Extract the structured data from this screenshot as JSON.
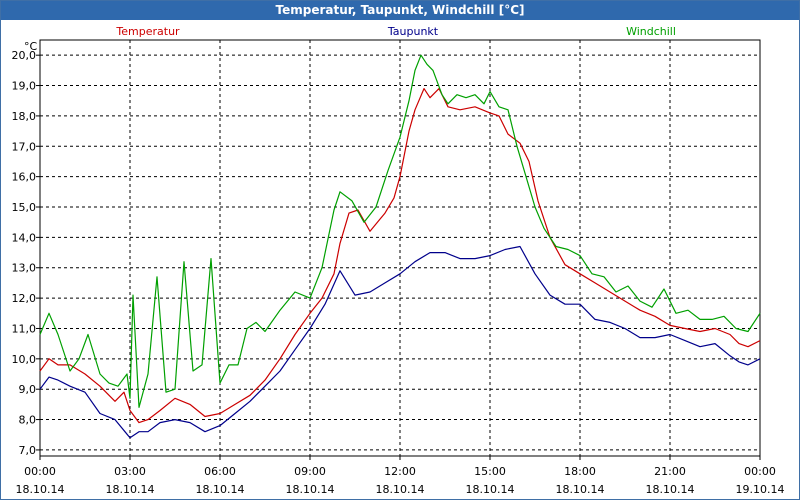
{
  "window": {
    "title": "Temperatur, Taupunkt, Windchill [°C]"
  },
  "chart_data": {
    "type": "line",
    "title": "Temperatur, Taupunkt, Windchill [°C]",
    "ylabel": "°C",
    "xlabel": "",
    "ylim": [
      6.8,
      20.5
    ],
    "xlim": [
      0,
      24
    ],
    "grid": true,
    "legend_position": "top",
    "y_ticks": [
      "7,0",
      "8,0",
      "9,0",
      "10,0",
      "11,0",
      "12,0",
      "13,0",
      "14,0",
      "15,0",
      "16,0",
      "17,0",
      "18,0",
      "19,0",
      "20,0"
    ],
    "x_ticks": [
      {
        "time": "00:00",
        "date": "18.10.14"
      },
      {
        "time": "03:00",
        "date": "18.10.14"
      },
      {
        "time": "06:00",
        "date": "18.10.14"
      },
      {
        "time": "09:00",
        "date": "18.10.14"
      },
      {
        "time": "12:00",
        "date": "18.10.14"
      },
      {
        "time": "15:00",
        "date": "18.10.14"
      },
      {
        "time": "18:00",
        "date": "18.10.14"
      },
      {
        "time": "21:00",
        "date": "18.10.14"
      },
      {
        "time": "00:00",
        "date": "19.10.14"
      }
    ],
    "series": [
      {
        "name": "Temperatur",
        "color": "#cc0000",
        "x": [
          0,
          0.3,
          0.6,
          1.0,
          1.5,
          2.0,
          2.5,
          2.8,
          3.0,
          3.3,
          3.6,
          4.0,
          4.5,
          5.0,
          5.5,
          6.0,
          6.5,
          7.0,
          7.5,
          8.0,
          8.5,
          9.0,
          9.4,
          9.8,
          10.0,
          10.3,
          10.6,
          11.0,
          11.5,
          11.8,
          12.0,
          12.3,
          12.5,
          12.8,
          13.0,
          13.3,
          13.6,
          14.0,
          14.5,
          15.0,
          15.3,
          15.6,
          16.0,
          16.3,
          16.6,
          17.0,
          17.5,
          18.0,
          18.5,
          19.0,
          19.5,
          20.0,
          20.5,
          21.0,
          21.5,
          22.0,
          22.5,
          23.0,
          23.3,
          23.6,
          24.0
        ],
        "values": [
          9.6,
          10.0,
          9.8,
          9.8,
          9.5,
          9.1,
          8.6,
          8.9,
          8.3,
          7.9,
          8.0,
          8.3,
          8.7,
          8.5,
          8.1,
          8.2,
          8.5,
          8.8,
          9.3,
          10.0,
          10.8,
          11.5,
          12.0,
          12.8,
          13.8,
          14.8,
          14.9,
          14.2,
          14.8,
          15.3,
          16.0,
          17.5,
          18.2,
          18.9,
          18.6,
          18.9,
          18.3,
          18.2,
          18.3,
          18.1,
          18.0,
          17.4,
          17.1,
          16.5,
          15.2,
          14.0,
          13.1,
          12.8,
          12.5,
          12.2,
          11.9,
          11.6,
          11.4,
          11.1,
          11.0,
          10.9,
          11.0,
          10.8,
          10.5,
          10.4,
          10.6
        ]
      },
      {
        "name": "Taupunkt",
        "color": "#00008b",
        "x": [
          0,
          0.3,
          0.6,
          1.0,
          1.5,
          2.0,
          2.5,
          3.0,
          3.3,
          3.6,
          4.0,
          4.5,
          5.0,
          5.5,
          6.0,
          6.5,
          7.0,
          7.5,
          8.0,
          8.5,
          9.0,
          9.5,
          10.0,
          10.5,
          11.0,
          11.5,
          12.0,
          12.5,
          13.0,
          13.5,
          14.0,
          14.5,
          15.0,
          15.5,
          16.0,
          16.5,
          17.0,
          17.5,
          18.0,
          18.5,
          19.0,
          19.5,
          20.0,
          20.5,
          21.0,
          21.5,
          22.0,
          22.5,
          23.0,
          23.3,
          23.6,
          24.0
        ],
        "values": [
          9.0,
          9.4,
          9.3,
          9.1,
          8.9,
          8.2,
          8.0,
          7.4,
          7.6,
          7.6,
          7.9,
          8.0,
          7.9,
          7.6,
          7.8,
          8.2,
          8.6,
          9.1,
          9.6,
          10.3,
          11.0,
          11.8,
          12.9,
          12.1,
          12.2,
          12.5,
          12.8,
          13.2,
          13.5,
          13.5,
          13.3,
          13.3,
          13.4,
          13.6,
          13.7,
          12.8,
          12.1,
          11.8,
          11.8,
          11.3,
          11.2,
          11.0,
          10.7,
          10.7,
          10.8,
          10.6,
          10.4,
          10.5,
          10.1,
          9.9,
          9.8,
          10.0
        ]
      },
      {
        "name": "Windchill",
        "color": "#00a000",
        "x": [
          0,
          0.3,
          0.6,
          1.0,
          1.3,
          1.6,
          2.0,
          2.3,
          2.6,
          2.9,
          3.0,
          3.1,
          3.3,
          3.6,
          3.9,
          4.2,
          4.5,
          4.8,
          5.1,
          5.4,
          5.7,
          6.0,
          6.3,
          6.6,
          6.9,
          7.2,
          7.5,
          8.0,
          8.5,
          9.0,
          9.4,
          9.8,
          10.0,
          10.4,
          10.8,
          11.2,
          11.6,
          12.0,
          12.3,
          12.5,
          12.7,
          12.9,
          13.1,
          13.4,
          13.6,
          13.9,
          14.2,
          14.5,
          14.8,
          15.0,
          15.3,
          15.6,
          15.9,
          16.2,
          16.5,
          16.8,
          17.2,
          17.6,
          18.0,
          18.4,
          18.8,
          19.2,
          19.6,
          20.0,
          20.4,
          20.8,
          21.2,
          21.6,
          22.0,
          22.4,
          22.8,
          23.2,
          23.6,
          24.0
        ],
        "values": [
          10.8,
          11.5,
          10.8,
          9.6,
          10.0,
          10.8,
          9.5,
          9.2,
          9.1,
          9.5,
          8.7,
          12.1,
          8.4,
          9.5,
          12.7,
          8.9,
          9.0,
          13.2,
          9.6,
          9.8,
          13.3,
          9.2,
          9.8,
          9.8,
          11.0,
          11.2,
          10.9,
          11.6,
          12.2,
          12.0,
          13.0,
          14.9,
          15.5,
          15.2,
          14.5,
          15.0,
          16.2,
          17.3,
          18.5,
          19.5,
          20.0,
          19.7,
          19.5,
          18.7,
          18.4,
          18.7,
          18.6,
          18.7,
          18.4,
          18.8,
          18.3,
          18.2,
          17.0,
          16.0,
          15.0,
          14.3,
          13.7,
          13.6,
          13.4,
          12.8,
          12.7,
          12.2,
          12.4,
          11.9,
          11.7,
          12.3,
          11.5,
          11.6,
          11.3,
          11.3,
          11.4,
          11.0,
          10.9,
          11.5
        ]
      }
    ]
  }
}
